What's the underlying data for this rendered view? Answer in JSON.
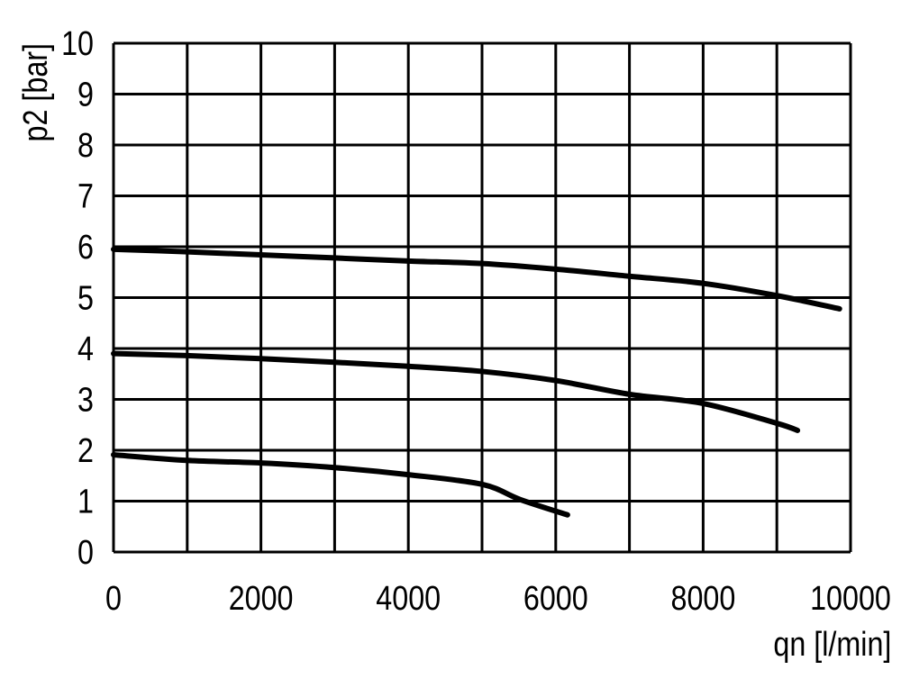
{
  "chart_data": {
    "type": "line",
    "title": "",
    "xlabel": "qn [l/min]",
    "ylabel": "p2 [bar]",
    "xlim": [
      0,
      10000
    ],
    "ylim": [
      0,
      10
    ],
    "grid": true,
    "x_ticks": [
      "0",
      "2000",
      "4000",
      "6000",
      "8000",
      "10000"
    ],
    "y_ticks": [
      "0",
      "1",
      "2",
      "3",
      "4",
      "5",
      "6",
      "7",
      "8",
      "9",
      "10"
    ],
    "line_color": "#000000",
    "series": [
      {
        "x": [
          0,
          1000,
          2000,
          3000,
          4000,
          5000,
          6000,
          7000,
          8000,
          9000,
          9850
        ],
        "y": [
          5.95,
          5.9,
          5.84,
          5.78,
          5.72,
          5.67,
          5.56,
          5.42,
          5.28,
          5.04,
          4.78
        ]
      },
      {
        "x": [
          0,
          1000,
          2000,
          3000,
          4000,
          5000,
          6000,
          7000,
          8000,
          9000,
          9280
        ],
        "y": [
          3.9,
          3.86,
          3.8,
          3.73,
          3.65,
          3.55,
          3.37,
          3.1,
          2.92,
          2.53,
          2.39
        ]
      },
      {
        "x": [
          0,
          1000,
          2000,
          3000,
          4000,
          5000,
          5520,
          6160
        ],
        "y": [
          1.91,
          1.8,
          1.75,
          1.66,
          1.52,
          1.33,
          1.03,
          0.73
        ]
      }
    ]
  }
}
